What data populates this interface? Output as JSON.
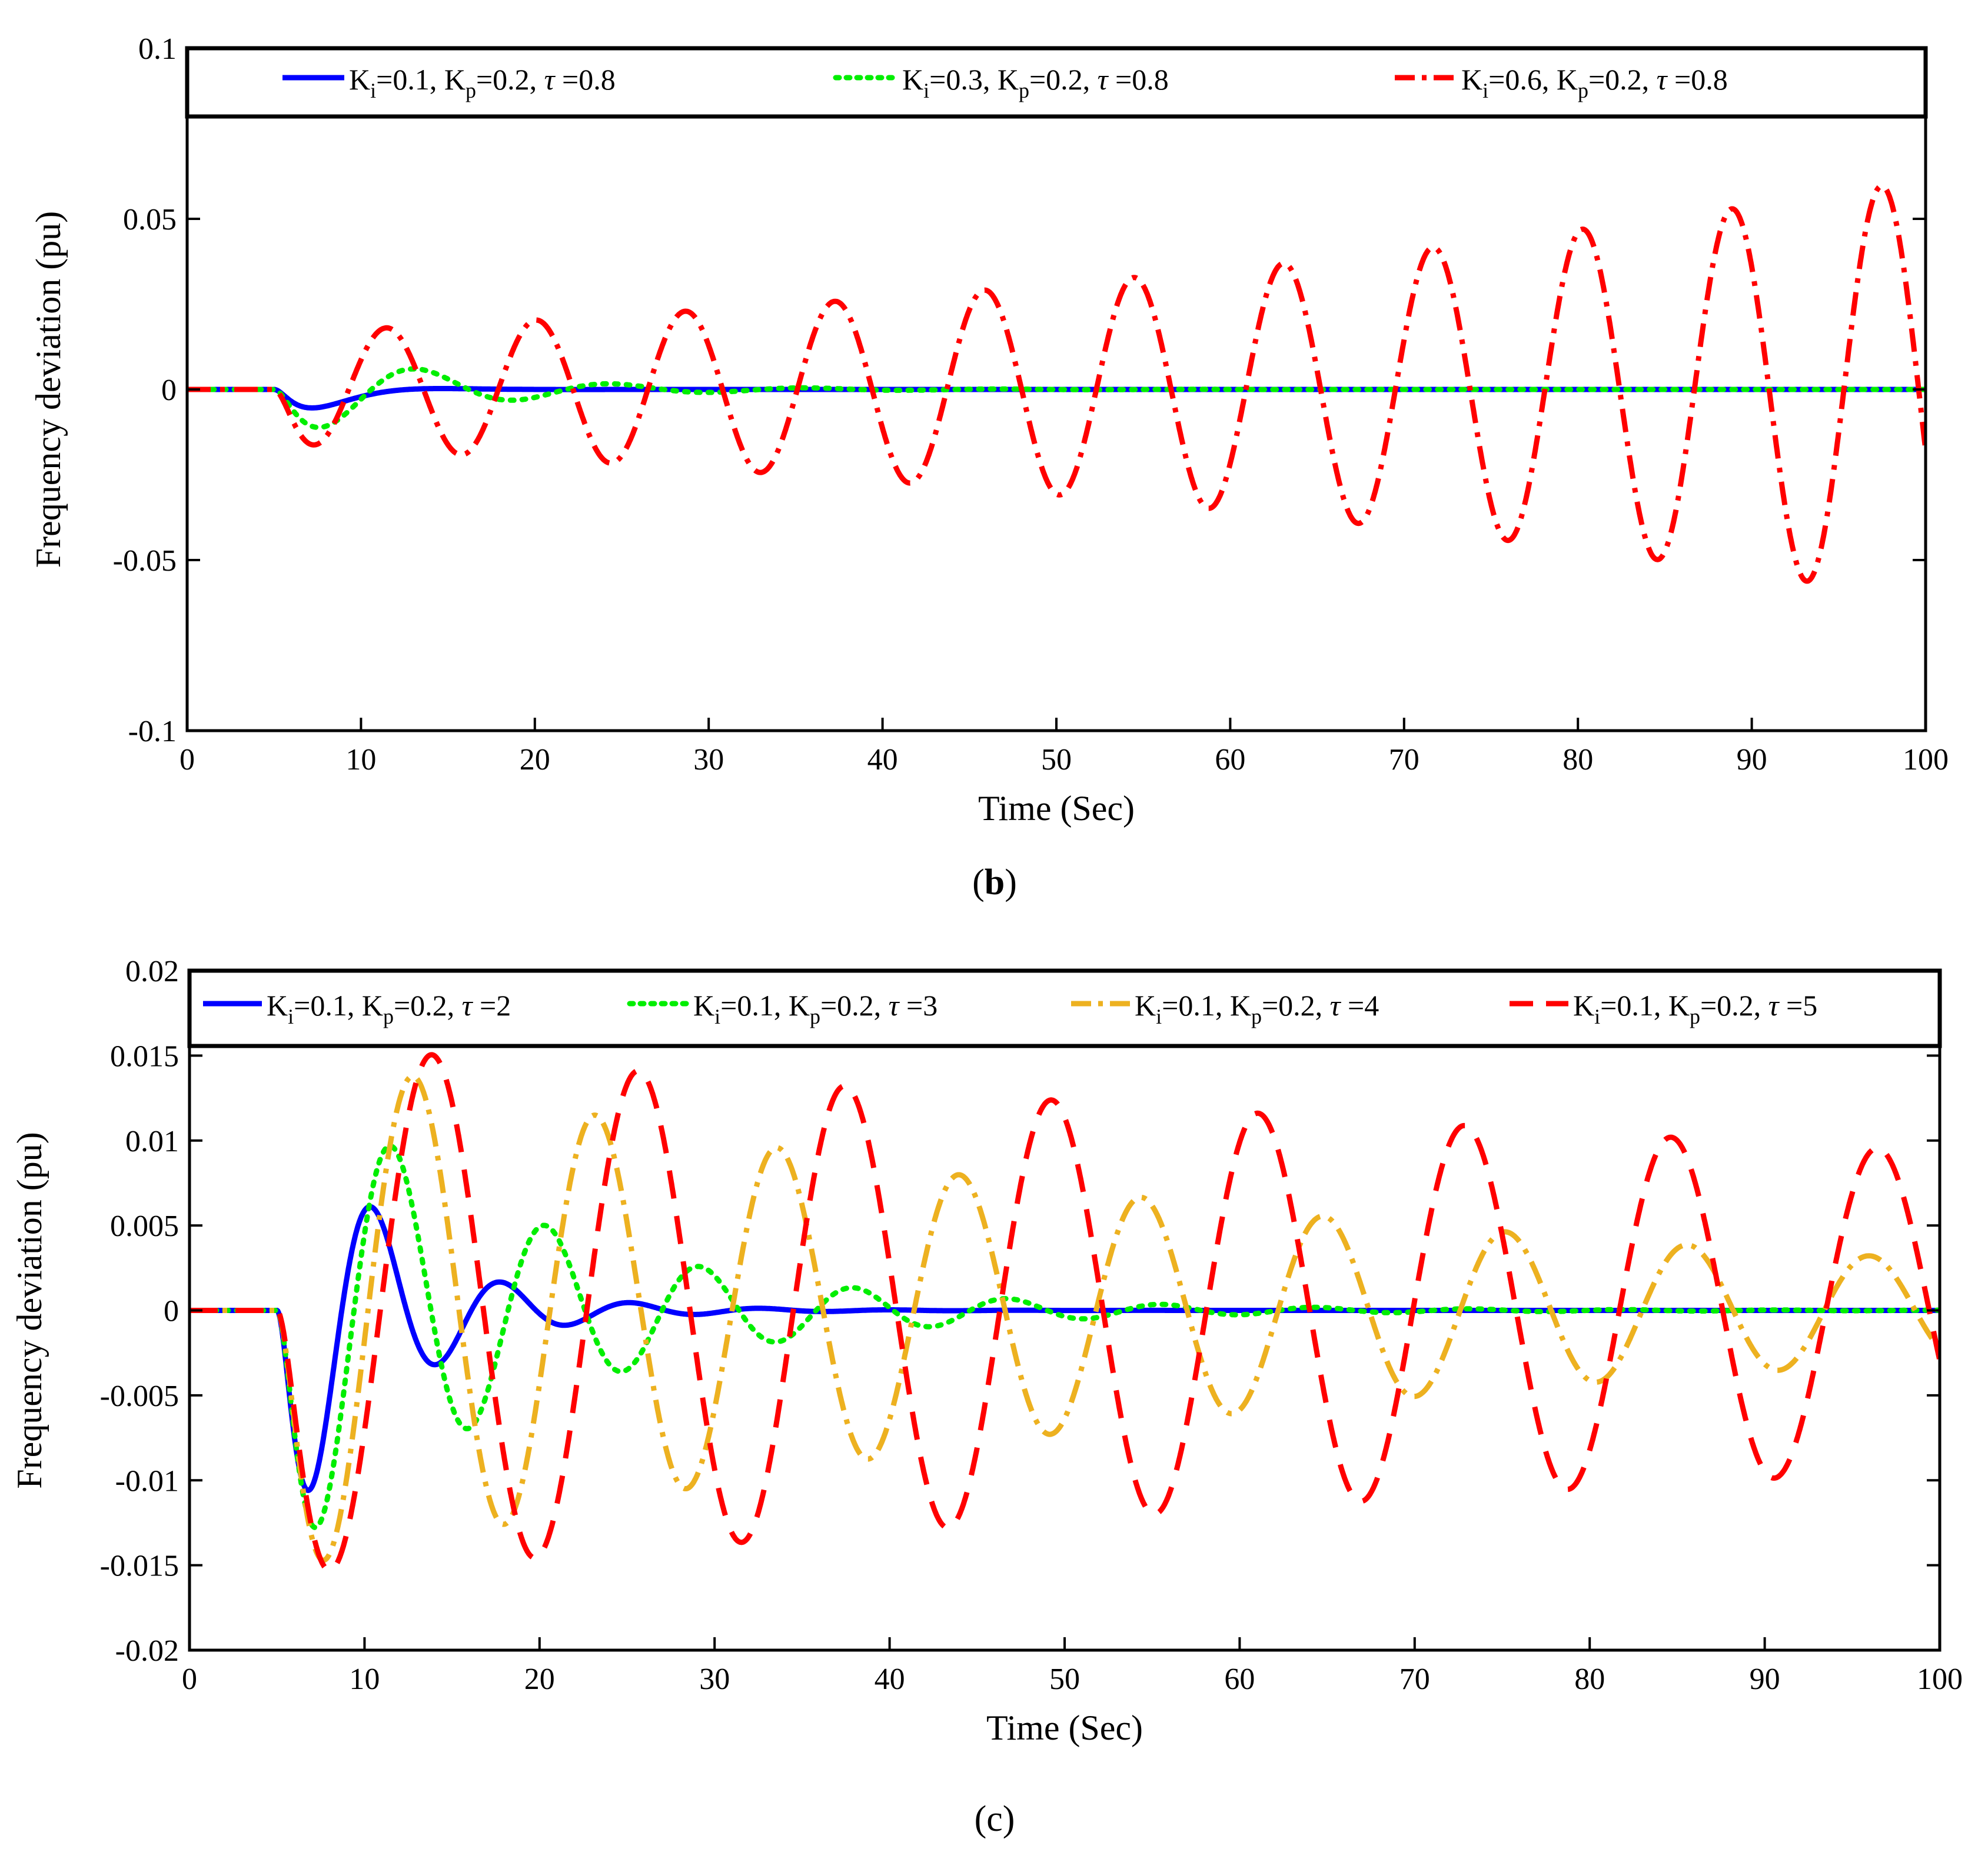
{
  "chart_data": [
    {
      "type": "line",
      "panel_label": "b",
      "xlabel": "Time (Sec)",
      "ylabel": "Frequency deviation (pu)",
      "xlim": [
        0,
        100
      ],
      "ylim": [
        -0.1,
        0.1
      ],
      "xticks": [
        0,
        10,
        20,
        30,
        40,
        50,
        60,
        70,
        80,
        90,
        100
      ],
      "xtick_labels": [
        "0",
        "10",
        "20",
        "30",
        "40",
        "50",
        "60",
        "70",
        "80",
        "90",
        "100"
      ],
      "yticks": [
        -0.1,
        -0.05,
        0,
        0.05,
        0.1
      ],
      "ytick_labels": [
        "-0.1",
        "-0.05",
        "0",
        "0.05",
        "0.1"
      ],
      "legend_position": "top",
      "series": [
        {
          "name": "Ki=0.1, Kp=0.2, τ=0.8",
          "legend": {
            "ki": "0.1",
            "kp": "0.2",
            "tau": "0.8"
          },
          "color": "#0000ff",
          "style": "solid",
          "model": {
            "t0": 5,
            "amp": 0.0175,
            "period": 15.4,
            "growth": -0.4,
            "tail": 0.0
          }
        },
        {
          "name": "Ki=0.3, Kp=0.2, τ=0.8",
          "legend": {
            "ki": "0.3",
            "kp": "0.2",
            "tau": "0.8"
          },
          "color": "#00ee00",
          "style": "dotted",
          "model": {
            "t0": 5,
            "amp": 0.0155,
            "period": 11.2,
            "growth": -0.115,
            "tail": 0.0
          }
        },
        {
          "name": "Ki=0.6, Kp=0.2, τ=0.8",
          "legend": {
            "ki": "0.6",
            "kp": "0.2",
            "tau": "0.8"
          },
          "color": "#ff0000",
          "style": "dashdot",
          "model": {
            "t0": 5,
            "amp": 0.0165,
            "period": 8.6,
            "growth": 0.0139,
            "tail": 0.0
          }
        }
      ]
    },
    {
      "type": "line",
      "panel_label": "c",
      "xlabel": "Time (Sec)",
      "ylabel": "Frequency deviation (pu)",
      "xlim": [
        0,
        100
      ],
      "ylim": [
        -0.02,
        0.02
      ],
      "xticks": [
        0,
        10,
        20,
        30,
        40,
        50,
        60,
        70,
        80,
        90,
        100
      ],
      "xtick_labels": [
        "0",
        "10",
        "20",
        "30",
        "40",
        "50",
        "60",
        "70",
        "80",
        "90",
        "100"
      ],
      "yticks": [
        -0.02,
        -0.015,
        -0.01,
        -0.005,
        0,
        0.005,
        0.01,
        0.015,
        0.02
      ],
      "ytick_labels": [
        "-0.02",
        "-0.015",
        "-0.01",
        "-0.005",
        "0",
        "0.005",
        "0.01",
        "0.015",
        "0.02"
      ],
      "legend_position": "top",
      "series": [
        {
          "name": "Ki=0.1, Kp=0.2, τ=2",
          "legend": {
            "ki": "0.1",
            "kp": "0.2",
            "tau": "2"
          },
          "color": "#0000ff",
          "style": "solid",
          "model": {
            "t0": 5,
            "amp": 0.0158,
            "period": 7.4,
            "growth": -0.175,
            "tail": 0.0
          }
        },
        {
          "name": "Ki=0.1, Kp=0.2, τ=3",
          "legend": {
            "ki": "0.1",
            "kp": "0.2",
            "tau": "3"
          },
          "color": "#00ee00",
          "style": "dotted",
          "model": {
            "t0": 5,
            "amp": 0.0158,
            "period": 8.8,
            "growth": -0.075,
            "tail": 0.0
          }
        },
        {
          "name": "Ki=0.1, Kp=0.2, τ=4",
          "legend": {
            "ki": "0.1",
            "kp": "0.2",
            "tau": "4"
          },
          "color": "#edb120",
          "style": "dashdot",
          "model": {
            "t0": 5,
            "amp": 0.0158,
            "period": 10.4,
            "growth": -0.0175,
            "tail": 0.0
          }
        },
        {
          "name": "Ki=0.1, Kp=0.2, τ=5",
          "legend": {
            "ki": "0.1",
            "kp": "0.2",
            "tau": "5"
          },
          "color": "#ff0000",
          "style": "dashed",
          "model": {
            "t0": 5,
            "amp": 0.0158,
            "period": 11.8,
            "growth": -0.0055,
            "tail": 0.0
          }
        }
      ]
    }
  ]
}
